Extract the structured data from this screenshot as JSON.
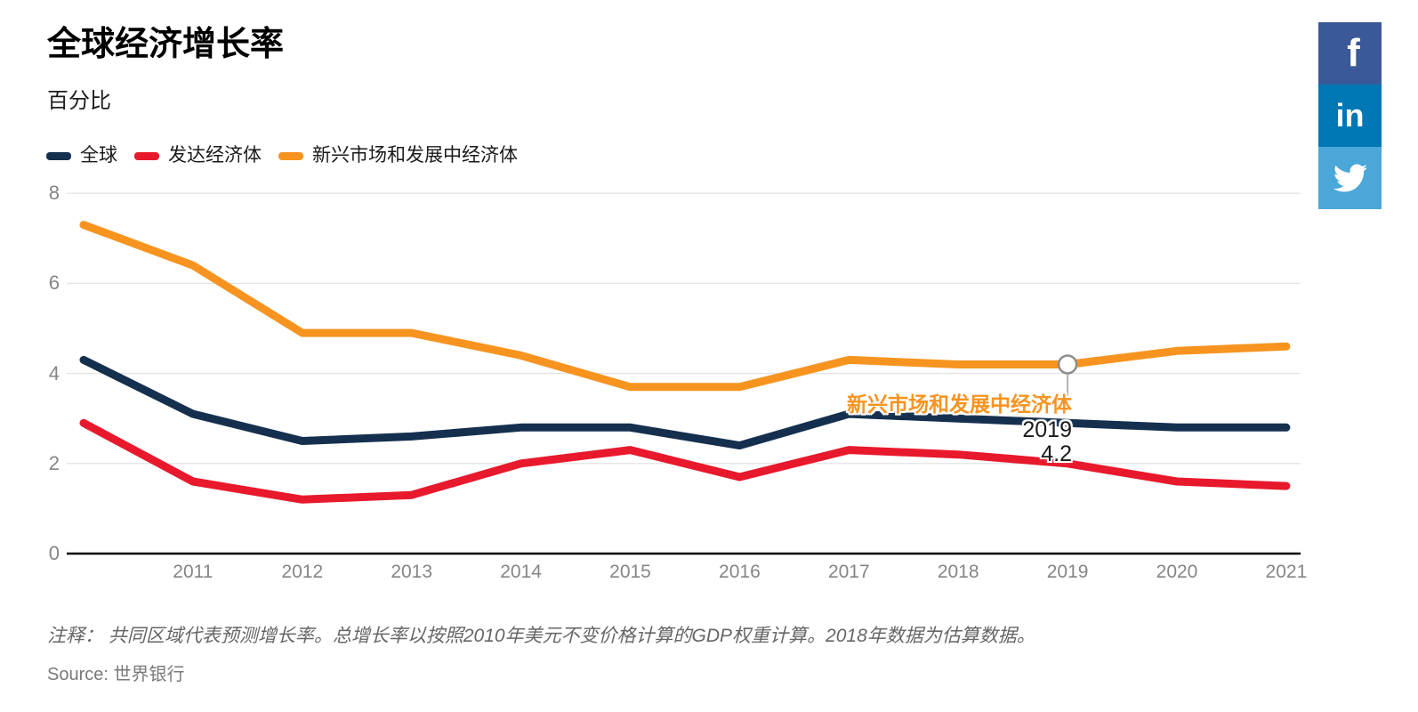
{
  "header": {
    "title": "全球经济增长率",
    "subtitle": "百分比"
  },
  "legend": {
    "items": [
      {
        "key": "global",
        "label": "全球",
        "color": "#15304e"
      },
      {
        "key": "advanced",
        "label": "发达经济体",
        "color": "#e8192d"
      },
      {
        "key": "emerging",
        "label": "新兴市场和发展中经济体",
        "color": "#f79420"
      }
    ]
  },
  "chart_data": {
    "type": "line",
    "title": "全球经济增长率",
    "ylabel": "百分比",
    "x": [
      2010,
      2011,
      2012,
      2013,
      2014,
      2015,
      2016,
      2017,
      2018,
      2019,
      2020,
      2021
    ],
    "x_tick_labels": [
      "2011",
      "2012",
      "2013",
      "2014",
      "2015",
      "2016",
      "2017",
      "2018",
      "2019",
      "2020",
      "2021"
    ],
    "yticks": [
      0,
      2,
      4,
      6,
      8
    ],
    "ylim": [
      0,
      8
    ],
    "grid": "horizontal",
    "legend_position": "top-left",
    "series": [
      {
        "key": "emerging",
        "name": "新兴市场和发展中经济体",
        "color": "#f79420",
        "values": [
          7.3,
          6.4,
          4.9,
          4.9,
          4.4,
          3.7,
          3.7,
          4.3,
          4.2,
          4.2,
          4.5,
          4.6
        ]
      },
      {
        "key": "global",
        "name": "全球",
        "color": "#15304e",
        "values": [
          4.3,
          3.1,
          2.5,
          2.6,
          2.8,
          2.8,
          2.4,
          3.1,
          3.0,
          2.9,
          2.8,
          2.8
        ]
      },
      {
        "key": "advanced",
        "name": "发达经济体",
        "color": "#e8192d",
        "values": [
          2.9,
          1.6,
          1.2,
          1.3,
          2.0,
          2.3,
          1.7,
          2.3,
          2.2,
          2.0,
          1.6,
          1.5
        ]
      }
    ]
  },
  "tooltip": {
    "series": "新兴市场和发展中经济体",
    "series_color": "#f79420",
    "year": "2019",
    "value": "4.2"
  },
  "social": {
    "facebook_label": "f",
    "linkedin_label": "in",
    "colors": {
      "facebook": "#3b5998",
      "linkedin": "#0077b5",
      "twitter": "#4aa7d8"
    }
  },
  "footer": {
    "note": "注释： 共同区域代表预测增长率。总增长率以按照2010年美元不变价格计算的GDP权重计算。2018年数据为估算数据。",
    "source_prefix": "Source:",
    "source": "世界银行"
  }
}
